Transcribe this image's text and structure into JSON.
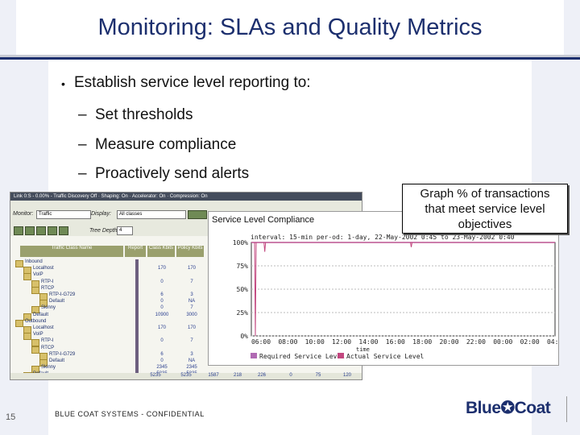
{
  "slide": {
    "title": "Monitoring: SLAs and Quality Metrics",
    "bullet": "Establish service level reporting to:",
    "subbullets": [
      "Set thresholds",
      "Measure compliance",
      "Proactively send alerts"
    ],
    "callout_lines": [
      "Graph % of transactions",
      "that meet service level",
      "objectives"
    ],
    "page_number": "15",
    "footer": "BLUE COAT SYSTEMS - CONFIDENTIAL",
    "logo": "Blue✪Coat",
    "colors": {
      "title": "#1c2f6e",
      "band": "#eef0f7",
      "required": "#b06ab3",
      "actual": "#c2477f"
    }
  },
  "screenshot": {
    "top_bar": "Link 0:S - 0.00% - Traffic Discovery Off · Shaping: On · Accelerator: On · Compression: On",
    "monitor_label": "Monitor:",
    "monitor_value": "Traffic",
    "display_label": "Display:",
    "display_value": "All classes",
    "tree_depth_label": "Tree Depth:",
    "tree_depth_value": "4",
    "col_headers": [
      "Traffic Class Name",
      "Report",
      "Class Kbits",
      "Policy Kbits"
    ],
    "rows": [
      {
        "name": "Inbound",
        "v1": "",
        "v2": "",
        "indent": 0
      },
      {
        "name": "Localhost",
        "v1": "170",
        "v2": "170",
        "indent": 1
      },
      {
        "name": "VoIP",
        "v1": "",
        "v2": "",
        "indent": 1
      },
      {
        "name": "RTP-I",
        "v1": "0",
        "v2": "7",
        "indent": 2
      },
      {
        "name": "RTCP",
        "v1": "",
        "v2": "",
        "indent": 2
      },
      {
        "name": "RTP-I-G729",
        "v1": "6",
        "v2": "3",
        "indent": 3
      },
      {
        "name": "Default",
        "v1": "0",
        "v2": "NA",
        "indent": 3
      },
      {
        "name": "Skinny",
        "v1": "0",
        "v2": "7",
        "indent": 2
      },
      {
        "name": "Default",
        "v1": "10900",
        "v2": "3000",
        "indent": 1
      },
      {
        "name": "Outbound",
        "v1": "",
        "v2": "",
        "indent": 0
      },
      {
        "name": "Localhost",
        "v1": "170",
        "v2": "170",
        "indent": 1
      },
      {
        "name": "VoIP",
        "v1": "",
        "v2": "",
        "indent": 1
      },
      {
        "name": "RTP-I",
        "v1": "0",
        "v2": "7",
        "indent": 2
      },
      {
        "name": "RTCP",
        "v1": "",
        "v2": "",
        "indent": 2
      },
      {
        "name": "RTP-I-G729",
        "v1": "6",
        "v2": "3",
        "indent": 3
      },
      {
        "name": "Default",
        "v1": "0",
        "v2": "NA",
        "indent": 3
      },
      {
        "name": "Skinny",
        "v1": "2345",
        "v2": "2345",
        "indent": 2
      },
      {
        "name": "Default",
        "v1": "5235",
        "v2": "5235",
        "indent": 1
      }
    ],
    "totals": [
      "5235",
      "5235",
      "1587",
      "218",
      "226",
      "0",
      "75",
      "120"
    ]
  },
  "chart_data": {
    "type": "line",
    "title": "Service Level Compliance",
    "interval": "interval: 15-min  per-od: 1-day, 22-May-2002 0:45 to 23-May-2002 0:40",
    "y_ticks": [
      "100%",
      "75%",
      "50%",
      "25%",
      "0%"
    ],
    "x_ticks": [
      "06:00",
      "08:00",
      "10:00",
      "12:00",
      "14:00",
      "16:00",
      "18:00",
      "20:00",
      "22:00",
      "00:00",
      "02:00",
      "04:00"
    ],
    "x_title": "time",
    "ylim": [
      0,
      100
    ],
    "series": [
      {
        "name": "Required Service Level",
        "values": [
          100,
          100,
          100,
          100,
          100,
          100,
          100,
          100,
          100,
          100,
          100,
          100
        ]
      },
      {
        "name": "Actual Service Level",
        "values": [
          100,
          100,
          100,
          100,
          100,
          100,
          100,
          100,
          100,
          100,
          100,
          100
        ]
      }
    ],
    "dips": [
      {
        "x": 0.15,
        "value": 0
      },
      {
        "x": 0.5,
        "value": 90
      },
      {
        "x": 5.95,
        "value": 95
      },
      {
        "x": 11.55,
        "value": 20
      },
      {
        "x": 11.75,
        "value": 0
      }
    ]
  }
}
